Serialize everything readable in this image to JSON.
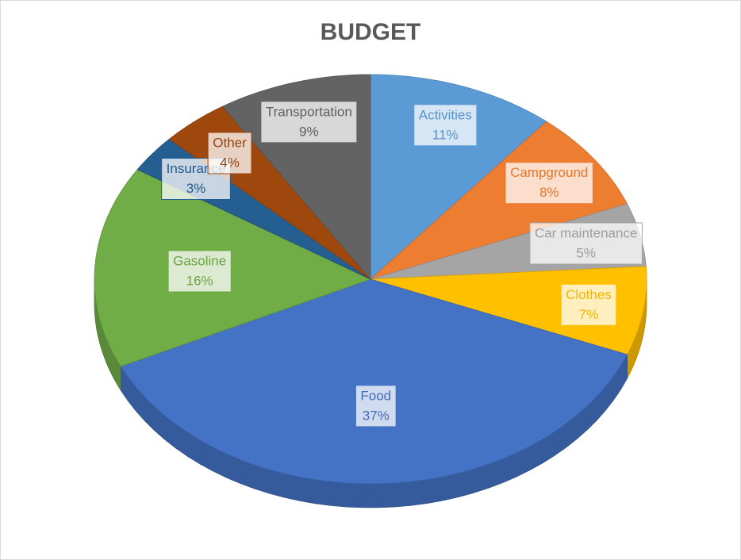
{
  "chart_data": {
    "type": "pie",
    "title": "BUDGET",
    "categories": [
      "Activities",
      "Campground",
      "Car maintenance",
      "Clothes",
      "Food",
      "Gasoline",
      "Insurance",
      "Other",
      "Transportation"
    ],
    "values": [
      11,
      8,
      5,
      7,
      37,
      16,
      3,
      4,
      9
    ],
    "value_labels": [
      "11%",
      "8%",
      "5%",
      "7%",
      "37%",
      "16%",
      "3%",
      "4%",
      "9%"
    ],
    "colors": [
      "#5b9bd5",
      "#ed7d31",
      "#a5a5a5",
      "#ffc000",
      "#4472c4",
      "#70ad47",
      "#255e91",
      "#9e480e",
      "#636363"
    ]
  }
}
